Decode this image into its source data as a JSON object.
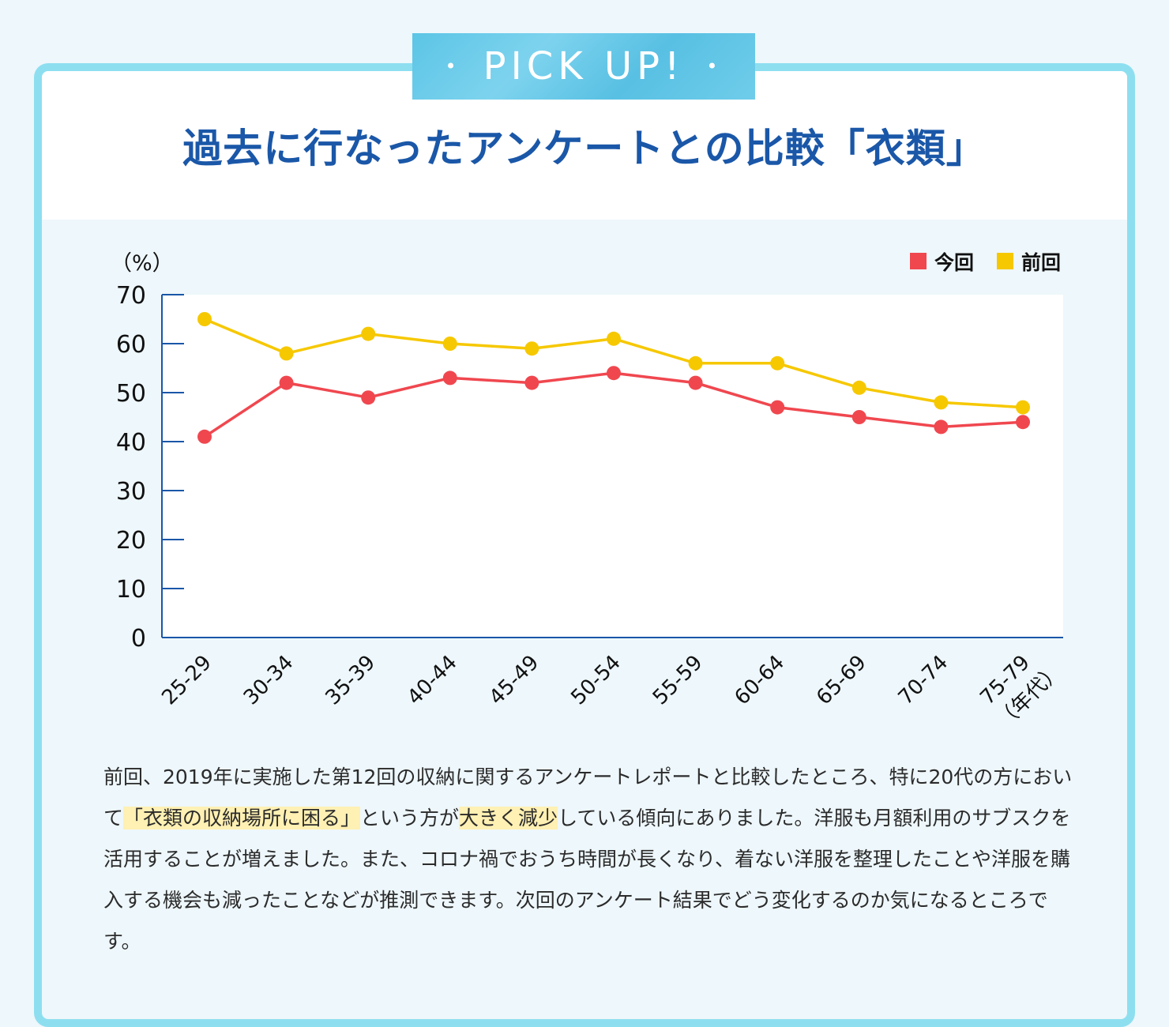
{
  "badge": {
    "label": "PICK UP!",
    "dot": "•"
  },
  "title": "過去に行なったアンケートとの比較「衣類」",
  "chart_data": {
    "type": "line",
    "ylabel": "（%）",
    "xunit": "（年代）",
    "ylim": [
      0,
      70
    ],
    "yticks": [
      0,
      10,
      20,
      30,
      40,
      50,
      60,
      70
    ],
    "categories": [
      "25-29",
      "30-34",
      "35-39",
      "40-44",
      "45-49",
      "50-54",
      "55-59",
      "60-64",
      "65-69",
      "70-74",
      "75-79"
    ],
    "series": [
      {
        "name": "今回",
        "color": "#f0474f",
        "values": [
          41,
          52,
          49,
          53,
          52,
          54,
          52,
          47,
          45,
          43,
          44
        ]
      },
      {
        "name": "前回",
        "color": "#f6c800",
        "values": [
          65,
          58,
          62,
          60,
          59,
          61,
          56,
          56,
          51,
          48,
          47
        ]
      }
    ],
    "legend_position": "top-right",
    "grid": false
  },
  "body": {
    "p1": "前回、2019年に実施した第12回の収納に関するアンケートレポートと比較したところ、特に20代の方において",
    "h1": "「衣類の収納場所に困る」",
    "p2": "という方が",
    "h2": "大きく減少",
    "p3": "している傾向にありました。洋服も月額利用のサブスクを活用することが増えました。また、コロナ禍でおうち時間が長くなり、着ない洋服を整理したことや洋服を購入する機会も減ったことなどが推測できます。次回のアンケート結果でどう変化するのか気になるところです。"
  }
}
